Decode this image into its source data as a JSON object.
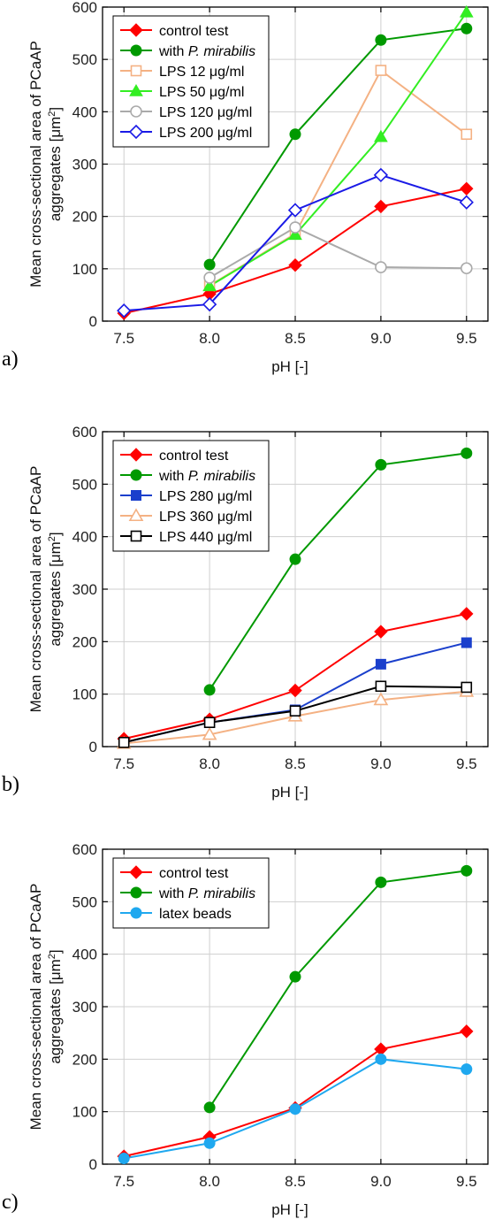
{
  "chart_data": [
    {
      "type": "line",
      "panel_label": "a)",
      "x": [
        7.5,
        8.0,
        8.5,
        9.0,
        9.5
      ],
      "x_tick_labels": [
        "7.5",
        "8.0",
        "8.5",
        "9.0",
        "9.5"
      ],
      "y_ticks": [
        0,
        100,
        200,
        300,
        400,
        500,
        600
      ],
      "ylim": [
        0,
        600
      ],
      "xlabel": "pH [-]",
      "ylabel_line1": "Mean cross-sectional area of PCaAP",
      "ylabel_line2_pre": "aggregates [μm",
      "ylabel_line2_sup": "2",
      "ylabel_line2_post": "]",
      "grid": true,
      "legend_position": "top-left",
      "series": [
        {
          "name": "control test",
          "color": "#ff0000",
          "marker": "diamond-filled",
          "values": [
            15,
            52,
            107,
            219,
            253
          ]
        },
        {
          "name_pre": "with ",
          "name_italic": "P. mirabilis",
          "color": "#009900",
          "marker": "circle-filled",
          "values": [
            null,
            108,
            357,
            537,
            559
          ]
        },
        {
          "name": "LPS 12 μg/ml",
          "color": "#f4b183",
          "marker": "square-open",
          "values": [
            null,
            68,
            167,
            479,
            357
          ]
        },
        {
          "name": "LPS 50 μg/ml",
          "color": "#33ee22",
          "marker": "triangle-filled",
          "values": [
            null,
            67,
            165,
            352,
            590
          ]
        },
        {
          "name": "LPS 120 μg/ml",
          "color": "#aaaaaa",
          "marker": "circle-open",
          "values": [
            null,
            83,
            179,
            103,
            101
          ]
        },
        {
          "name": "LPS 200 μg/ml",
          "color": "#1a1ae6",
          "marker": "diamond-open",
          "values": [
            20,
            32,
            212,
            279,
            227
          ]
        }
      ]
    },
    {
      "type": "line",
      "panel_label": "b)",
      "x": [
        7.5,
        8.0,
        8.5,
        9.0,
        9.5
      ],
      "x_tick_labels": [
        "7.5",
        "8.0",
        "8.5",
        "9.0",
        "9.5"
      ],
      "y_ticks": [
        0,
        100,
        200,
        300,
        400,
        500,
        600
      ],
      "ylim": [
        0,
        600
      ],
      "xlabel": "pH [-]",
      "ylabel_line1": "Mean cross-sectional area of PCaAP",
      "ylabel_line2_pre": "aggregates [μm",
      "ylabel_line2_sup": "2",
      "ylabel_line2_post": "]",
      "grid": true,
      "legend_position": "top-left",
      "series": [
        {
          "name": "control test",
          "color": "#ff0000",
          "marker": "diamond-filled",
          "values": [
            15,
            52,
            107,
            219,
            253
          ]
        },
        {
          "name_pre": "with ",
          "name_italic": "P. mirabilis",
          "color": "#009900",
          "marker": "circle-filled",
          "values": [
            null,
            108,
            357,
            537,
            559
          ]
        },
        {
          "name": "LPS 280 μg/ml",
          "color": "#1a3fcc",
          "marker": "square-filled",
          "values": [
            8,
            46,
            70,
            157,
            198
          ]
        },
        {
          "name": "LPS 360 μg/ml",
          "color": "#f4b183",
          "marker": "triangle-open",
          "values": [
            6,
            23,
            58,
            89,
            105
          ]
        },
        {
          "name": "LPS 440 μg/ml",
          "color": "#000000",
          "marker": "square-open",
          "values": [
            8,
            46,
            68,
            115,
            113
          ]
        }
      ]
    },
    {
      "type": "line",
      "panel_label": "c)",
      "x": [
        7.5,
        8.0,
        8.5,
        9.0,
        9.5
      ],
      "x_tick_labels": [
        "7.5",
        "8.0",
        "8.5",
        "9.0",
        "9.5"
      ],
      "y_ticks": [
        0,
        100,
        200,
        300,
        400,
        500,
        600
      ],
      "ylim": [
        0,
        600
      ],
      "xlabel": "pH [-]",
      "ylabel_line1": "Mean cross-sectional area of PCaAP",
      "ylabel_line2_pre": "aggregates [μm",
      "ylabel_line2_sup": "2",
      "ylabel_line2_post": "]",
      "grid": true,
      "legend_position": "top-left",
      "series": [
        {
          "name": "control test",
          "color": "#ff0000",
          "marker": "diamond-filled",
          "values": [
            15,
            52,
            107,
            219,
            253
          ]
        },
        {
          "name_pre": "with ",
          "name_italic": "P. mirabilis",
          "color": "#009900",
          "marker": "circle-filled",
          "values": [
            null,
            108,
            357,
            537,
            559
          ]
        },
        {
          "name": "latex beads",
          "color": "#1fa8ef",
          "marker": "circle-filled",
          "values": [
            11,
            40,
            105,
            200,
            181
          ]
        }
      ]
    }
  ]
}
